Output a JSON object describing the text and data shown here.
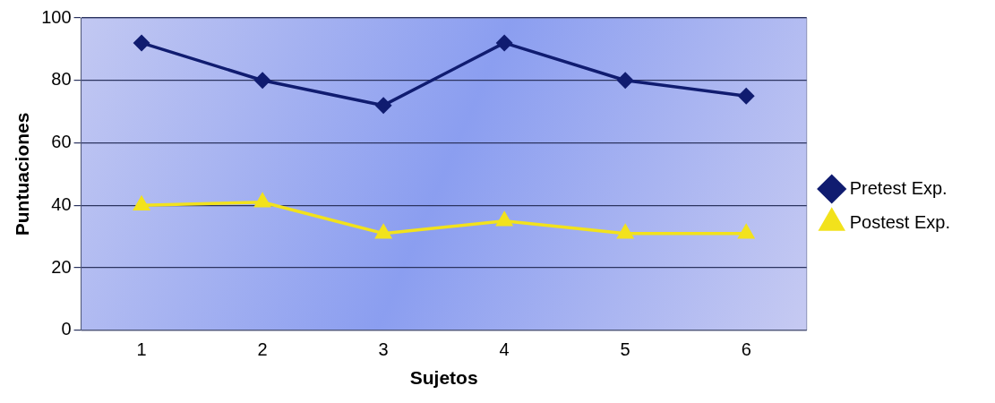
{
  "chart_data": {
    "type": "line",
    "xlabel": "Sujetos",
    "ylabel": "Puntuaciones",
    "categories": [
      "1",
      "2",
      "3",
      "4",
      "5",
      "6"
    ],
    "series": [
      {
        "name": "Pretest Exp.",
        "color": "#101c70",
        "marker": "diamond",
        "values": [
          92,
          80,
          72,
          92,
          80,
          75
        ]
      },
      {
        "name": "Postest Exp.",
        "color": "#f2e21c",
        "marker": "triangle",
        "values": [
          40,
          41,
          31,
          35,
          31,
          31
        ]
      }
    ],
    "ylim": [
      0,
      100
    ],
    "yticks": [
      0,
      20,
      40,
      60,
      80,
      100
    ],
    "grid": "y",
    "legend": "right",
    "line_style": "solid"
  }
}
